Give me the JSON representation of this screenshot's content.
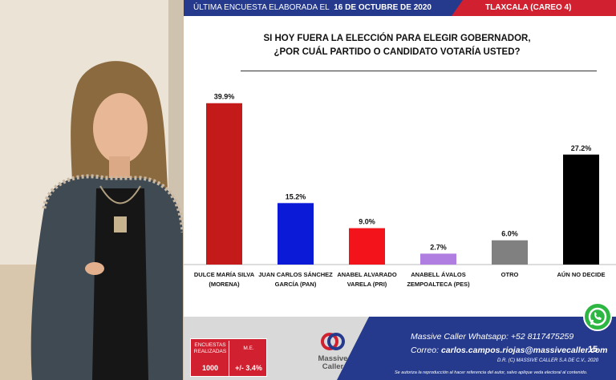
{
  "banner": {
    "left_prefix": "ÚLTIMA ENCUESTA ELABORADA EL",
    "left_date": "16 DE OCTUBRE DE 2020",
    "right": "TLAXCALA (CAREO 4)"
  },
  "title_line1": "SI HOY FUERA LA ELECCIÓN PARA ELEGIR GOBERNADOR,",
  "title_line2": "¿POR CUÁL PARTIDO O CANDIDATO VOTARÍA USTED?",
  "colors": {
    "blue": "#253a8c",
    "red": "#d1202f",
    "bar_morena": "#c41a1a",
    "bar_pan": "#0a1ad6",
    "bar_pri": "#f2141a",
    "bar_pes": "#b07ee0",
    "bar_otro": "#808080",
    "bar_nodecide": "#000000"
  },
  "chart_data": {
    "type": "bar",
    "categories": [
      [
        "DULCE MARÍA SILVA",
        "(MORENA)"
      ],
      [
        "JUAN CARLOS SÁNCHEZ",
        "GARCÍA (PAN)"
      ],
      [
        "ANABEL ALVARADO",
        "VARELA (PRI)"
      ],
      [
        "ANABELL ÁVALOS",
        "ZEMPOALTECA (PES)"
      ],
      [
        "OTRO"
      ],
      [
        "AÚN NO DECIDE"
      ]
    ],
    "values": [
      39.9,
      15.2,
      9.0,
      2.7,
      6.0,
      27.2
    ],
    "value_labels": [
      "39.9%",
      "15.2%",
      "9.0%",
      "2.7%",
      "6.0%",
      "27.2%"
    ],
    "bar_colors": [
      "#c41a1a",
      "#0a1ad6",
      "#f2141a",
      "#b07ee0",
      "#808080",
      "#000000"
    ],
    "ylim": [
      0,
      45
    ],
    "grid": false
  },
  "footer": {
    "stats_header_left": [
      "ENCUESTAS",
      "REALIZADAS"
    ],
    "stats_header_right": "M.E.",
    "stats_value_left": "1000",
    "stats_value_right": "+/- 3.4%",
    "logo_line1": "Massive",
    "logo_line2": "Caller",
    "whatsapp_label": "Massive Caller Whatsapp:",
    "whatsapp_number": "+52 8117475259",
    "email_label": "Correo:",
    "email": "carlos.campos.riojas@massivecaller.com",
    "page_number": "15",
    "copyright": "D.R. (C) MASSIVE CALLER S.A DE C.V., 2020",
    "disclaimer": "Se autoriza la reproducción al hacer referencia del autor, salvo aplique veda electoral al contenido."
  },
  "icons": {
    "whatsapp": "whatsapp-icon",
    "logo": "massive-caller-logo"
  }
}
